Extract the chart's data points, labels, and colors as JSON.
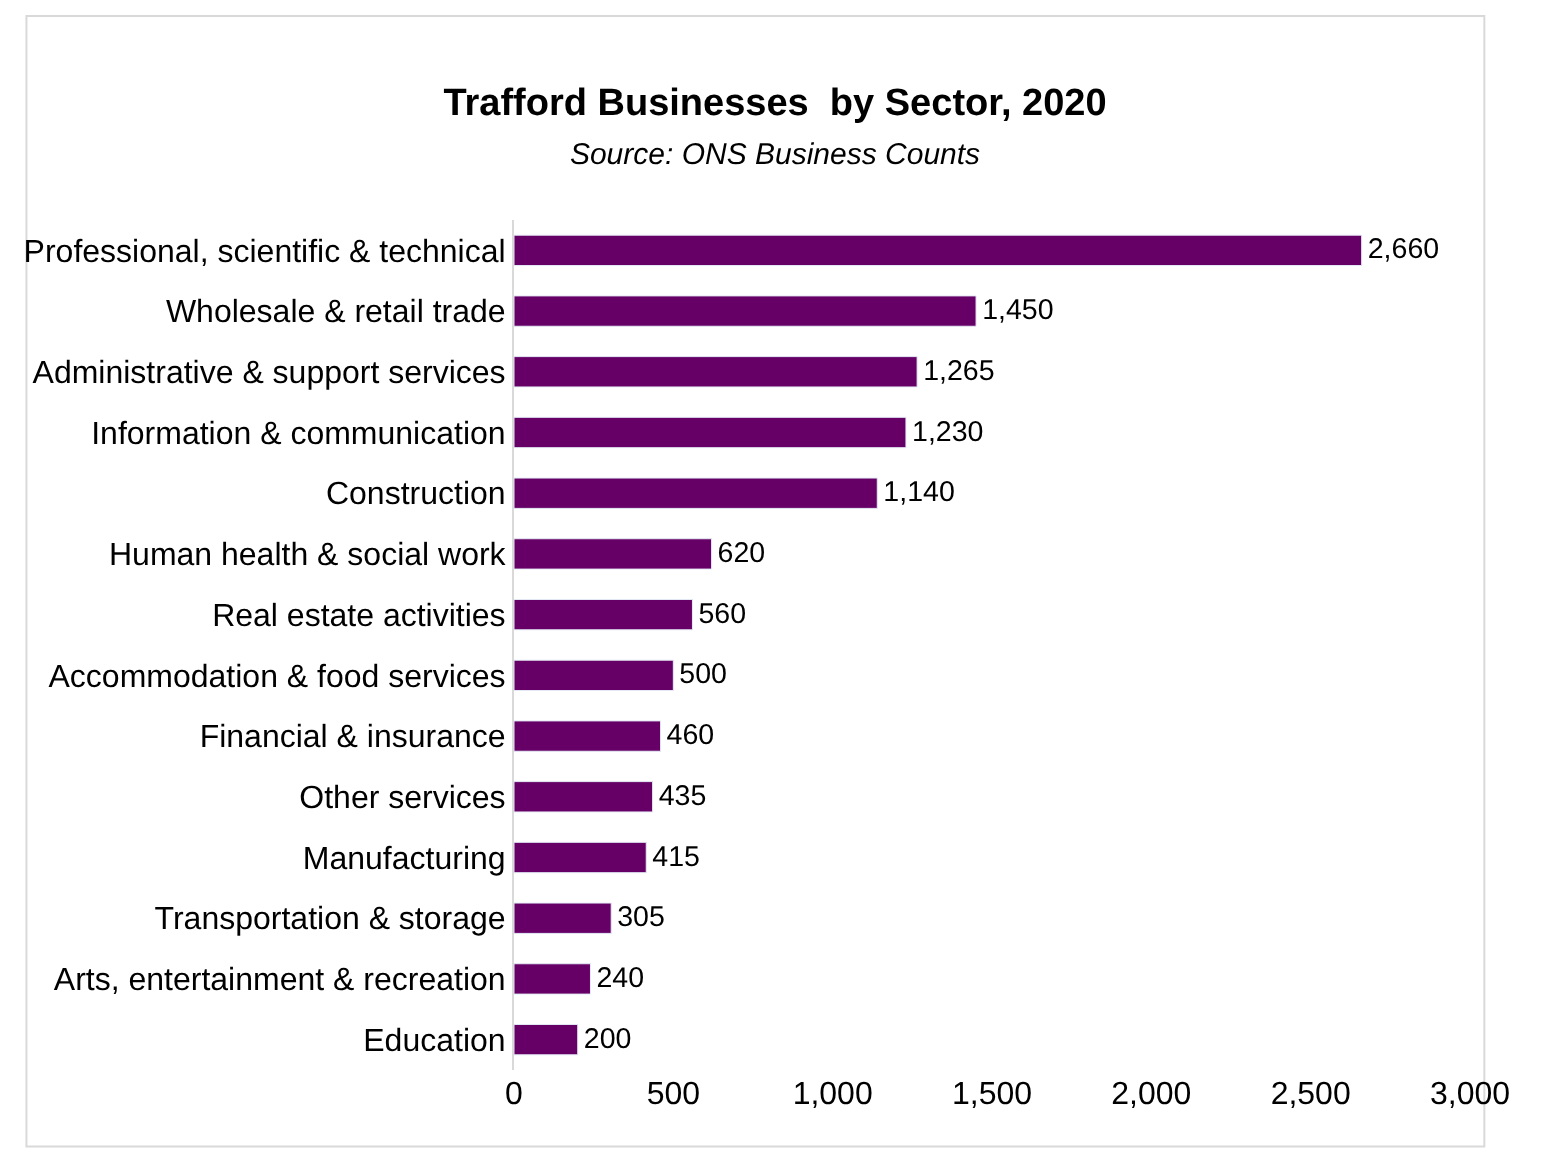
{
  "chart_data": {
    "type": "bar",
    "orientation": "horizontal",
    "title": "Trafford Businesses  by Sector, 2020",
    "subtitle": "Source: ONS Business Counts",
    "categories": [
      "Professional, scientific & technical",
      "Wholesale & retail trade",
      "Administrative & support services",
      "Information & communication",
      "Construction",
      "Human health & social work",
      "Real estate activities",
      "Accommodation & food services",
      "Financial & insurance",
      "Other services",
      "Manufacturing",
      "Transportation & storage",
      "Arts, entertainment & recreation",
      "Education"
    ],
    "values": [
      2660,
      1450,
      1265,
      1230,
      1140,
      620,
      560,
      500,
      460,
      435,
      415,
      305,
      240,
      200
    ],
    "value_labels": [
      "2,660",
      "1,450",
      "1,265",
      "1,230",
      "1,140",
      "620",
      "560",
      "500",
      "460",
      "435",
      "415",
      "305",
      "240",
      "200"
    ],
    "color": "#660066",
    "legend": false,
    "xlim": [
      0,
      3000
    ],
    "xticks": [
      0,
      500,
      {
        "value": 1000,
        "label": "1,000"
      },
      {
        "value": 1500,
        "label": "1,500"
      },
      {
        "value": 2000,
        "label": "2,000"
      },
      {
        "value": 2500,
        "label": "2,500"
      },
      {
        "value": 3000,
        "label": "3,000"
      }
    ]
  }
}
